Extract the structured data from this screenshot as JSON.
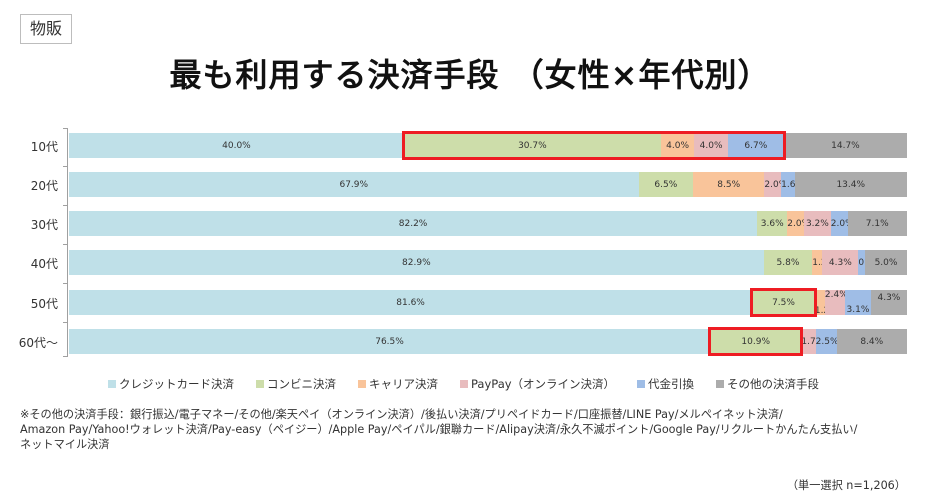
{
  "tag": "物販",
  "title": "最も利用する決済手段 （女性×年代別）",
  "colors": {
    "credit": "#bfe0e8",
    "conbini": "#cdddaa",
    "carrier": "#f9c49a",
    "paypay": "#e8bcbe",
    "cod": "#9fbde6",
    "other": "#acacac",
    "highlight": "#ee1c23"
  },
  "chart_data": {
    "type": "bar",
    "orientation": "horizontal",
    "stacked": true,
    "title": "最も利用する決済手段 （女性×年代別）",
    "categories": [
      "10代",
      "20代",
      "30代",
      "40代",
      "50代",
      "60代～"
    ],
    "series": [
      {
        "name": "クレジットカード決済",
        "values": [
          40.0,
          67.9,
          82.2,
          82.9,
          81.6,
          76.5
        ]
      },
      {
        "name": "コンビニ決済",
        "values": [
          30.7,
          6.5,
          3.6,
          5.8,
          7.5,
          10.9
        ]
      },
      {
        "name": "キャリア決済",
        "values": [
          4.0,
          8.5,
          2.0,
          1.2,
          1.2,
          0.0
        ]
      },
      {
        "name": "PayPay（オンライン決済）",
        "values": [
          4.0,
          2.0,
          3.2,
          4.3,
          2.4,
          1.7
        ]
      },
      {
        "name": "代金引換",
        "values": [
          6.7,
          1.6,
          2.0,
          0.8,
          3.1,
          2.5
        ]
      },
      {
        "name": "その他の決済手段",
        "values": [
          14.7,
          13.4,
          7.1,
          5.0,
          4.3,
          8.4
        ]
      }
    ],
    "xlim": [
      0,
      100
    ],
    "unit": "%",
    "legend_position": "bottom",
    "grid": false,
    "annotations": [
      {
        "type": "highlight-box",
        "row": "10代",
        "series": [
          "コンビニ決済",
          "キャリア決済",
          "PayPay（オンライン決済）",
          "代金引換"
        ]
      },
      {
        "type": "highlight-box",
        "row": "50代",
        "series": [
          "コンビニ決済"
        ]
      },
      {
        "type": "highlight-box",
        "row": "60代～",
        "series": [
          "コンビニ決済"
        ]
      }
    ]
  },
  "rows": [
    {
      "label": "10代",
      "segs": [
        {
          "v": "40.0%"
        },
        {
          "v": "30.7%"
        },
        {
          "v": "4.0%"
        },
        {
          "v": "4.0%"
        },
        {
          "v": "6.7%"
        },
        {
          "v": "14.7%"
        }
      ]
    },
    {
      "label": "20代",
      "segs": [
        {
          "v": "67.9%"
        },
        {
          "v": "6.5%"
        },
        {
          "v": "8.5%"
        },
        {
          "v": "2.0%"
        },
        {
          "v": "1.6%"
        },
        {
          "v": "13.4%"
        }
      ]
    },
    {
      "label": "30代",
      "segs": [
        {
          "v": "82.2%"
        },
        {
          "v": "3.6%"
        },
        {
          "v": "2.0%"
        },
        {
          "v": "3.2%"
        },
        {
          "v": "2.0%"
        },
        {
          "v": "7.1%"
        }
      ]
    },
    {
      "label": "40代",
      "segs": [
        {
          "v": "82.9%"
        },
        {
          "v": "5.8%"
        },
        {
          "v": "1.2%"
        },
        {
          "v": "4.3%"
        },
        {
          "v": "0.8%"
        },
        {
          "v": "5.0%"
        }
      ]
    },
    {
      "label": "50代",
      "segs": [
        {
          "v": "81.6%"
        },
        {
          "v": "7.5%"
        },
        {
          "v": "1.2%"
        },
        {
          "v": "2.4%"
        },
        {
          "v": "3.1%"
        },
        {
          "v": "4.3%"
        }
      ]
    },
    {
      "label": "60代～",
      "segs": [
        {
          "v": "76.5%"
        },
        {
          "v": "10.9%"
        },
        {
          "v": ""
        },
        {
          "v": "1.7%"
        },
        {
          "v": "2.5%"
        },
        {
          "v": "8.4%"
        }
      ]
    }
  ],
  "legend": [
    {
      "label": "クレジットカード決済"
    },
    {
      "label": "コンビニ決済"
    },
    {
      "label": "キャリア決済"
    },
    {
      "label": "PayPay（オンライン決済）"
    },
    {
      "label": "代金引換"
    },
    {
      "label": "その他の決済手段"
    }
  ],
  "note": {
    "line1": "※その他の決済手段：銀行振込/電子マネー/その他/楽天ペイ（オンライン決済）/後払い決済/プリペイドカード/口座振替/LINE Pay/メルペイネット決済/",
    "line2": "Amazon Pay/Yahoo!ウォレット決済/Pay-easy（ペイジー）/Apple Pay/ペイパル/銀聯カード/Alipay決済/永久不滅ポイント/Google Pay/リクルートかんたん支払い/",
    "line3": "ネットマイル決済"
  },
  "sample": "（単一選択 n=1,206）"
}
